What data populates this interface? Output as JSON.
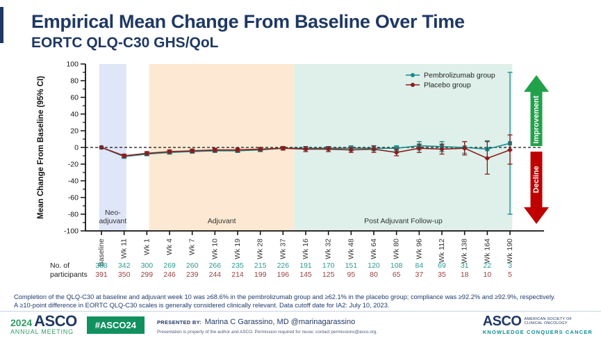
{
  "slide": {
    "title": "Empirical Mean Change From Baseline Over Time",
    "subtitle": "EORTC QLQ-C30 GHS/QoL"
  },
  "chart_data": {
    "type": "line",
    "ylabel": "Mean Change From Baseline (95% CI)",
    "ylim": [
      -100,
      100
    ],
    "y_ticks": [
      100,
      80,
      60,
      40,
      20,
      0,
      -20,
      -40,
      -60,
      -80,
      -100
    ],
    "zero_reference_line": true,
    "legend_position": "top-right",
    "categories": [
      "Baseline",
      "Wk 11",
      "Wk 1",
      "Wk 4",
      "Wk 7",
      "Wk 10",
      "Wk 19",
      "Wk 28",
      "Wk 37",
      "Wk 16",
      "Wk 32",
      "Wk 48",
      "Wk 64",
      "Wk 80",
      "Wk 96",
      "Wk 112",
      "Wk 138",
      "Wk 164",
      "Wk 190"
    ],
    "phases": [
      {
        "label_lines": [
          "Neo-",
          "adjuvant"
        ],
        "from": -0.1,
        "to": 1.1,
        "color": "#dfe6f7"
      },
      {
        "label_lines": [
          "Adjuvant"
        ],
        "from": 2.1,
        "to": 8.5,
        "color": "#fde9d3"
      },
      {
        "label_lines": [
          "Post Adjuvant Follow-up"
        ],
        "from": 8.5,
        "to": 18.1,
        "color": "#def0e9"
      }
    ],
    "series": [
      {
        "name": "Pembrolizumab group",
        "color": "#178a8d",
        "marker": "square",
        "values": [
          0,
          -11,
          -8,
          -6,
          -5,
          -4,
          -4,
          -3,
          -1,
          -1,
          -1,
          -1,
          -1,
          -1,
          2,
          1,
          0,
          -2,
          5
        ],
        "ci_low": [
          0,
          -13,
          -10,
          -8,
          -7,
          -6,
          -6,
          -5,
          -3,
          -3,
          -3,
          -4,
          -4,
          -4,
          -3,
          -5,
          -7,
          -12,
          -80
        ],
        "ci_high": [
          0,
          -9,
          -6,
          -4,
          -3,
          -2,
          -2,
          -1,
          1,
          1,
          1,
          2,
          2,
          2,
          7,
          7,
          7,
          8,
          90
        ]
      },
      {
        "name": "Placebo group",
        "color": "#8b1d1d",
        "marker": "diamond",
        "values": [
          0,
          -10,
          -7,
          -5,
          -4,
          -3,
          -3,
          -2,
          -1,
          -2,
          -2,
          -3,
          -2,
          -6,
          -1,
          -2,
          -1,
          -13,
          -3
        ],
        "ci_low": [
          0,
          -12,
          -9,
          -7,
          -6,
          -5,
          -5,
          -4,
          -3,
          -5,
          -5,
          -6,
          -6,
          -10,
          -6,
          -8,
          -9,
          -32,
          -20
        ],
        "ci_high": [
          0,
          -8,
          -5,
          -3,
          -2,
          -1,
          -1,
          0,
          1,
          1,
          1,
          0,
          2,
          -2,
          4,
          4,
          7,
          7,
          15
        ]
      }
    ],
    "annotations": [
      {
        "label": "Improvement",
        "direction": "up",
        "color": "#22a14b"
      },
      {
        "label": "Decline",
        "direction": "down",
        "color": "#c00000"
      }
    ]
  },
  "participants": {
    "label_line1": "No. of",
    "label_line2": "participants",
    "pembrolizumab": [
      388,
      342,
      300,
      269,
      260,
      266,
      235,
      215,
      226,
      191,
      170,
      151,
      120,
      108,
      84,
      69,
      31,
      22,
      3
    ],
    "placebo": [
      391,
      350,
      299,
      246,
      239,
      244,
      214,
      199,
      196,
      145,
      125,
      95,
      80,
      65,
      37,
      35,
      18,
      10,
      5
    ]
  },
  "footnote": {
    "line1": "Completion of the QLQ-C30 at baseline and adjuvant week 10 was ≥68.6% in the pembrolizumab group and ≥62.1% in the placebo group; compliance was ≥92.2% and ≥92.9%, respectively.",
    "line2": "A ≥10-point difference in EORTC QLQ-C30 scales is generally considered clinically relevant. Data cutoff date for IA2: July 10, 2023."
  },
  "footer": {
    "meeting_year": "2024",
    "meeting_name_line1": "ASCO",
    "meeting_name_line2": "ANNUAL MEETING",
    "hashtag": "#ASCO24",
    "presented_by_label": "PRESENTED BY:",
    "presenter": "Marina C Garassino, MD @marinagarassino",
    "permission": "Presentation is property of the author and ASCO. Permission required for reuse; contact permissions@asco.org.",
    "asco_logo": "ASCO",
    "asco_society_line1": "AMERICAN SOCIETY OF",
    "asco_society_line2": "CLINICAL ONCOLOGY",
    "asco_tagline": "KNOWLEDGE CONQUERS CANCER"
  },
  "colors": {
    "title_navy": "#1f3864",
    "pembrolizumab_teal": "#178a8d",
    "placebo_dark_red": "#8b1d1d",
    "neoadjuvant_band": "#dfe6f7",
    "adjuvant_band": "#fde9d3",
    "followup_band": "#def0e9",
    "improvement_green": "#22a14b",
    "decline_red": "#c00000",
    "asco_green": "#2f9b63",
    "badge_green": "#11915f",
    "tagline_teal": "#0f8b93"
  }
}
